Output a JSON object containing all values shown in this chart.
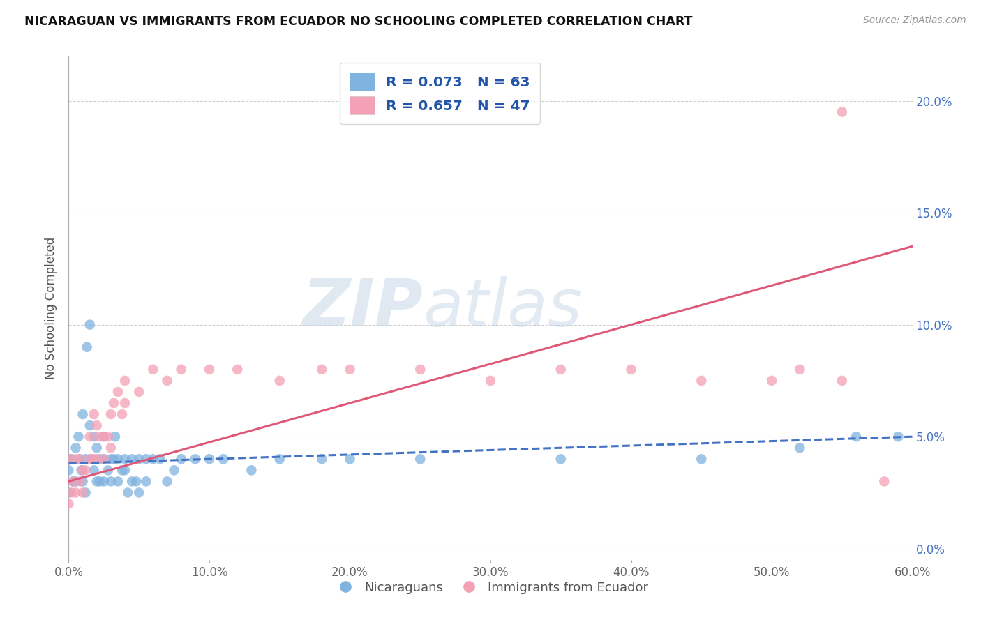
{
  "title": "NICARAGUAN VS IMMIGRANTS FROM ECUADOR NO SCHOOLING COMPLETED CORRELATION CHART",
  "source": "Source: ZipAtlas.com",
  "ylabel": "No Schooling Completed",
  "xlim": [
    0.0,
    0.6
  ],
  "ylim": [
    -0.005,
    0.22
  ],
  "legend1_r": "R = 0.073",
  "legend1_n": "N = 63",
  "legend2_r": "R = 0.657",
  "legend2_n": "N = 47",
  "blue_color": "#7fb3e0",
  "pink_color": "#f4a0b5",
  "blue_line_color": "#4472c4",
  "pink_line_color": "#e05878",
  "legend_text_color": "#2255aa",
  "watermark_zip": "ZIP",
  "watermark_atlas": "atlas",
  "background_color": "#ffffff",
  "grid_color": "#cccccc",
  "scatter_blue_x": [
    0.0,
    0.0,
    0.0,
    0.002,
    0.003,
    0.005,
    0.005,
    0.007,
    0.008,
    0.009,
    0.01,
    0.01,
    0.012,
    0.012,
    0.013,
    0.015,
    0.015,
    0.016,
    0.018,
    0.018,
    0.02,
    0.02,
    0.022,
    0.022,
    0.025,
    0.025,
    0.025,
    0.028,
    0.03,
    0.03,
    0.032,
    0.033,
    0.035,
    0.035,
    0.038,
    0.04,
    0.04,
    0.042,
    0.045,
    0.045,
    0.048,
    0.05,
    0.05,
    0.055,
    0.055,
    0.06,
    0.065,
    0.07,
    0.075,
    0.08,
    0.09,
    0.1,
    0.11,
    0.13,
    0.15,
    0.18,
    0.2,
    0.25,
    0.35,
    0.45,
    0.52,
    0.56,
    0.59
  ],
  "scatter_blue_y": [
    0.035,
    0.04,
    0.025,
    0.04,
    0.03,
    0.045,
    0.03,
    0.05,
    0.04,
    0.035,
    0.06,
    0.03,
    0.04,
    0.025,
    0.09,
    0.1,
    0.055,
    0.04,
    0.035,
    0.05,
    0.045,
    0.03,
    0.03,
    0.04,
    0.03,
    0.04,
    0.05,
    0.035,
    0.04,
    0.03,
    0.04,
    0.05,
    0.04,
    0.03,
    0.035,
    0.035,
    0.04,
    0.025,
    0.04,
    0.03,
    0.03,
    0.04,
    0.025,
    0.04,
    0.03,
    0.04,
    0.04,
    0.03,
    0.035,
    0.04,
    0.04,
    0.04,
    0.04,
    0.035,
    0.04,
    0.04,
    0.04,
    0.04,
    0.04,
    0.04,
    0.045,
    0.05,
    0.05
  ],
  "scatter_pink_x": [
    0.0,
    0.0,
    0.002,
    0.003,
    0.005,
    0.005,
    0.008,
    0.008,
    0.01,
    0.01,
    0.012,
    0.015,
    0.015,
    0.018,
    0.018,
    0.02,
    0.02,
    0.022,
    0.025,
    0.025,
    0.028,
    0.03,
    0.03,
    0.032,
    0.035,
    0.038,
    0.04,
    0.04,
    0.05,
    0.06,
    0.07,
    0.08,
    0.1,
    0.12,
    0.15,
    0.18,
    0.2,
    0.25,
    0.3,
    0.35,
    0.4,
    0.45,
    0.5,
    0.52,
    0.55,
    0.55,
    0.58
  ],
  "scatter_pink_y": [
    0.02,
    0.04,
    0.025,
    0.03,
    0.025,
    0.04,
    0.04,
    0.03,
    0.035,
    0.025,
    0.035,
    0.05,
    0.04,
    0.04,
    0.06,
    0.055,
    0.04,
    0.05,
    0.05,
    0.04,
    0.05,
    0.045,
    0.06,
    0.065,
    0.07,
    0.06,
    0.065,
    0.075,
    0.07,
    0.08,
    0.075,
    0.08,
    0.08,
    0.08,
    0.075,
    0.08,
    0.08,
    0.08,
    0.075,
    0.08,
    0.08,
    0.075,
    0.075,
    0.08,
    0.075,
    0.195,
    0.03
  ],
  "blue_trendline_x": [
    0.0,
    0.6
  ],
  "blue_trendline_y": [
    0.038,
    0.05
  ],
  "pink_trendline_x": [
    0.0,
    0.6
  ],
  "pink_trendline_y": [
    0.03,
    0.135
  ]
}
